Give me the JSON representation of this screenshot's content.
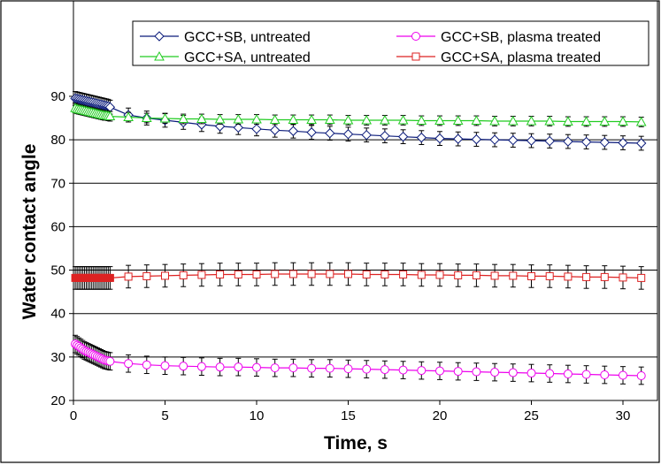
{
  "chart_data": {
    "type": "line",
    "title": "",
    "xlabel": "Time, s",
    "ylabel": "Water contact angle",
    "xlim": [
      0,
      31
    ],
    "ylim": [
      20,
      90
    ],
    "xticks": [
      "0",
      "5",
      "10",
      "15",
      "20",
      "25",
      "30"
    ],
    "yticks": [
      "20",
      "30",
      "40",
      "50",
      "60",
      "70",
      "80",
      "90"
    ],
    "grid": "horizontal",
    "legend_position": "top",
    "series": [
      {
        "name": "GCC+SB, untreated",
        "color": "#0a1a7a",
        "marker": "diamond",
        "x": [
          0.1,
          0.2,
          0.3,
          0.4,
          0.5,
          0.6,
          0.7,
          0.8,
          0.9,
          1.0,
          1.1,
          1.2,
          1.3,
          1.4,
          1.5,
          1.6,
          1.7,
          1.8,
          1.9,
          2,
          3,
          4,
          5,
          6,
          7,
          8,
          9,
          10,
          11,
          12,
          13,
          14,
          15,
          16,
          17,
          18,
          19,
          20,
          21,
          22,
          23,
          24,
          25,
          26,
          27,
          28,
          29,
          30,
          31
        ],
        "y": [
          89.5,
          89.4,
          89.3,
          89.2,
          89.1,
          89.0,
          88.9,
          88.8,
          88.7,
          88.6,
          88.5,
          88.4,
          88.3,
          88.2,
          88.1,
          88.0,
          87.9,
          87.8,
          87.7,
          87.5,
          85.7,
          85.0,
          84.5,
          84.0,
          83.5,
          83.1,
          82.8,
          82.5,
          82.2,
          82.0,
          81.7,
          81.5,
          81.3,
          81.1,
          80.9,
          80.7,
          80.5,
          80.3,
          80.2,
          80.1,
          80.0,
          79.9,
          79.8,
          79.7,
          79.6,
          79.5,
          79.4,
          79.3,
          79.2
        ],
        "error": 1.6
      },
      {
        "name": "GCC+SA, untreated",
        "color": "#22cc22",
        "marker": "triangle",
        "x": [
          0.1,
          0.2,
          0.3,
          0.4,
          0.5,
          0.6,
          0.7,
          0.8,
          0.9,
          1.0,
          1.1,
          1.2,
          1.3,
          1.4,
          1.5,
          1.6,
          1.7,
          1.8,
          1.9,
          2,
          3,
          4,
          5,
          6,
          7,
          8,
          9,
          10,
          11,
          12,
          13,
          14,
          15,
          16,
          17,
          18,
          19,
          20,
          21,
          22,
          23,
          24,
          25,
          26,
          27,
          28,
          29,
          30,
          31
        ],
        "y": [
          87.3,
          87.1,
          87.0,
          86.9,
          86.8,
          86.7,
          86.6,
          86.5,
          86.4,
          86.3,
          86.2,
          86.1,
          86.0,
          85.9,
          85.8,
          85.7,
          85.6,
          85.6,
          85.5,
          85.4,
          85.2,
          85.0,
          84.9,
          84.8,
          84.8,
          84.7,
          84.7,
          84.7,
          84.6,
          84.6,
          84.6,
          84.6,
          84.5,
          84.5,
          84.5,
          84.5,
          84.4,
          84.4,
          84.4,
          84.4,
          84.3,
          84.3,
          84.3,
          84.3,
          84.2,
          84.2,
          84.2,
          84.2,
          84.1
        ],
        "error": 1.1
      },
      {
        "name": "GCC+SB, plasma treated",
        "color": "#ee00ee",
        "marker": "circle",
        "x": [
          0.1,
          0.2,
          0.3,
          0.4,
          0.5,
          0.6,
          0.7,
          0.8,
          0.9,
          1.0,
          1.1,
          1.2,
          1.3,
          1.4,
          1.5,
          1.6,
          1.7,
          1.8,
          1.9,
          2,
          3,
          4,
          5,
          6,
          7,
          8,
          9,
          10,
          11,
          12,
          13,
          14,
          15,
          16,
          17,
          18,
          19,
          20,
          21,
          22,
          23,
          24,
          25,
          26,
          27,
          28,
          29,
          30,
          31
        ],
        "y": [
          33.0,
          32.7,
          32.4,
          32.1,
          31.8,
          31.5,
          31.3,
          31.1,
          30.9,
          30.7,
          30.5,
          30.3,
          30.1,
          29.9,
          29.7,
          29.5,
          29.3,
          29.2,
          29.1,
          29.0,
          28.5,
          28.2,
          28.0,
          27.9,
          27.8,
          27.7,
          27.7,
          27.6,
          27.5,
          27.5,
          27.4,
          27.4,
          27.3,
          27.2,
          27.1,
          27.0,
          26.9,
          26.8,
          26.7,
          26.6,
          26.5,
          26.4,
          26.3,
          26.2,
          26.1,
          26.0,
          25.9,
          25.8,
          25.7
        ],
        "error": 2.0
      },
      {
        "name": "GCC+SA, plasma treated",
        "color": "#dd2222",
        "marker": "square",
        "x": [
          0.1,
          0.2,
          0.3,
          0.4,
          0.5,
          0.6,
          0.7,
          0.8,
          0.9,
          1.0,
          1.1,
          1.2,
          1.3,
          1.4,
          1.5,
          1.6,
          1.7,
          1.8,
          1.9,
          2,
          3,
          4,
          5,
          6,
          7,
          8,
          9,
          10,
          11,
          12,
          13,
          14,
          15,
          16,
          17,
          18,
          19,
          20,
          21,
          22,
          23,
          24,
          25,
          26,
          27,
          28,
          29,
          30,
          31
        ],
        "y": [
          48.2,
          48.2,
          48.2,
          48.2,
          48.2,
          48.2,
          48.2,
          48.2,
          48.2,
          48.2,
          48.2,
          48.2,
          48.2,
          48.2,
          48.2,
          48.2,
          48.2,
          48.2,
          48.2,
          48.2,
          48.5,
          48.6,
          48.7,
          48.8,
          48.9,
          49.0,
          49.0,
          49.0,
          49.1,
          49.1,
          49.1,
          49.1,
          49.1,
          49.0,
          49.0,
          49.0,
          48.9,
          48.9,
          48.8,
          48.8,
          48.7,
          48.7,
          48.6,
          48.6,
          48.5,
          48.4,
          48.4,
          48.3,
          48.2
        ],
        "error": 2.6
      }
    ]
  }
}
